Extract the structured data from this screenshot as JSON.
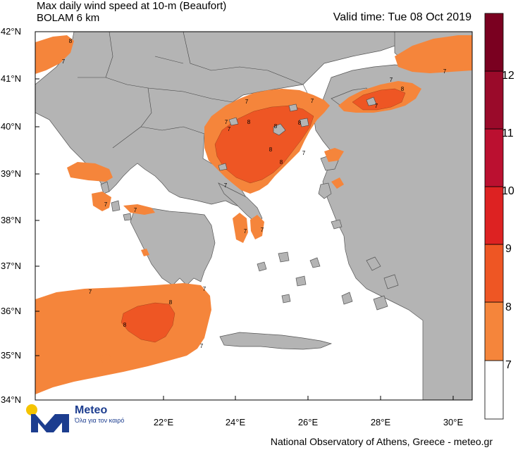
{
  "header": {
    "title": "Max daily wind speed at 10-m (Beaufort)",
    "model": "BOLAM 6 km",
    "valid_time": "Valid time: Tue 08 Oct 2019"
  },
  "footer": {
    "credit": "National Observatory of Athens, Greece - meteo.gr"
  },
  "logo": {
    "name": "Meteo",
    "tagline": "Όλα για τον καιρό",
    "dot_color": "#f5c400",
    "brand_color": "#1c3d8f"
  },
  "axes": {
    "lat_labels": [
      "42°N",
      "41°N",
      "40°N",
      "39°N",
      "38°N",
      "37°N",
      "36°N",
      "35°N",
      "34°N"
    ],
    "lon_labels": [
      "22°E",
      "24°E",
      "26°E",
      "28°E",
      "30°E"
    ]
  },
  "colorbar": {
    "levels": [
      "7",
      "8",
      "9",
      "10",
      "11",
      "12"
    ],
    "colors": [
      "#ffffff",
      "#f5853b",
      "#ee5624",
      "#dd2222",
      "#bb1030",
      "#9a0a2a",
      "#7a0020"
    ]
  },
  "map_colors": {
    "land": "#b4b4b4",
    "sea": "#ffffff",
    "bft7": "#f5853b",
    "bft8": "#ee5624"
  },
  "contour_labels": {
    "l1": "8",
    "l2": "7",
    "l3": "7",
    "l4": "7",
    "l5": "8",
    "l6": "7",
    "l7": "8",
    "l8": "7",
    "l9": "8",
    "l10": "8",
    "l11": "7",
    "l12": "7",
    "l13": "7",
    "l14": "8",
    "l15": "7",
    "l16": "7",
    "l17": "7",
    "l18": "7",
    "l19": "7",
    "l20": "8",
    "l21": "8",
    "l22": "7",
    "l23": "7",
    "l24": "7",
    "l25": "7",
    "l26": "8"
  }
}
